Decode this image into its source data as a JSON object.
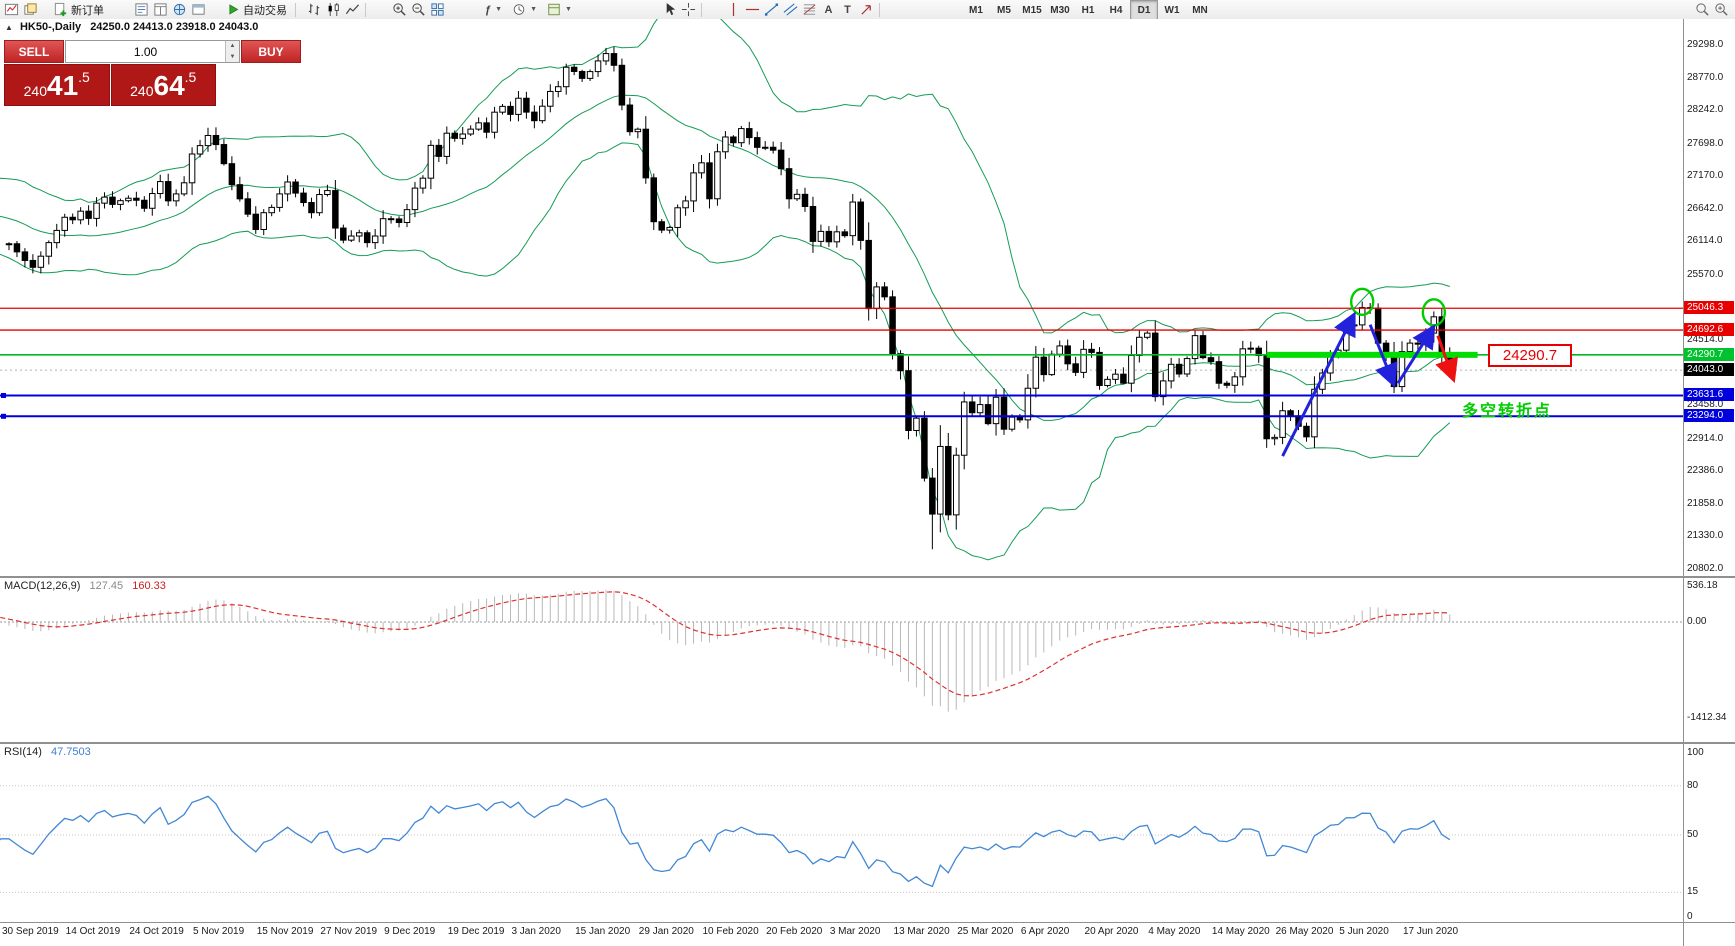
{
  "toolbar": {
    "new_order_label": "新订单",
    "autotrading_label": "自动交易",
    "timeframes": [
      "M1",
      "M5",
      "M15",
      "M30",
      "H1",
      "H4",
      "D1",
      "W1",
      "MN"
    ],
    "active_timeframe": "D1"
  },
  "chart_header": {
    "collapse_arrow": "▲",
    "symbol_title": "HK50-,Daily",
    "ohlc": "24250.0 24413.0 23918.0 24043.0"
  },
  "trade_panel": {
    "sell_label": "SELL",
    "buy_label": "BUY",
    "volume": "1.00",
    "sell_price": {
      "pre": "240",
      "big": "41",
      "frac": ".5"
    },
    "buy_price": {
      "pre": "240",
      "big": "64",
      "frac": ".5"
    }
  },
  "annotations": {
    "price_tag": "24290.7",
    "pivot_label": "多空转折点"
  },
  "indicators": {
    "macd": {
      "name": "MACD(12,26,9)",
      "main_value": "127.45",
      "signal_value": "160.33",
      "scale": [
        "536.18",
        "0.00",
        "-1412.34"
      ]
    },
    "rsi": {
      "name": "RSI(14)",
      "value": "47.7503",
      "scale": [
        "100",
        "80",
        "50",
        "15",
        "0"
      ]
    }
  },
  "price_axis": {
    "regular_labels": [
      "29298.0",
      "28770.0",
      "28242.0",
      "27698.0",
      "27170.0",
      "26642.0",
      "26114.0",
      "25570.0",
      "24514.0",
      "23458.0",
      "22914.0",
      "22386.0",
      "21858.0",
      "21330.0",
      "20802.0"
    ],
    "level_badges": [
      {
        "text": "25046.3",
        "value": 25046.3,
        "color": "#e80000"
      },
      {
        "text": "24692.6",
        "value": 24692.6,
        "color": "#e80000"
      },
      {
        "text": "24290.7",
        "value": 24290.7,
        "color": "#00c22e"
      },
      {
        "text": "24043.0",
        "value": 24043.0,
        "color": "#000000"
      },
      {
        "text": "23631.6",
        "value": 23631.6,
        "color": "#0000dd"
      },
      {
        "text": "23294.0",
        "value": 23294.0,
        "color": "#0000dd"
      }
    ]
  },
  "chart_data": {
    "type": "candlestick",
    "symbol": "HK50",
    "timeframe": "Daily",
    "last_bar": {
      "open": 24250.0,
      "high": 24413.0,
      "low": 23918.0,
      "close": 24043.0
    },
    "current_price": 24043.0,
    "levels": [
      {
        "value": 25046.3,
        "color": "#e80000",
        "width": 1.3
      },
      {
        "value": 24692.6,
        "color": "#e80000",
        "width": 1.3
      },
      {
        "value": 24290.7,
        "color": "#00bb22",
        "width": 1.6,
        "highlight_segment": {
          "from_bar": 158,
          "to_bar": 184.5
        }
      },
      {
        "value": 23631.6,
        "color": "#0000dd",
        "width": 2,
        "handle": true
      },
      {
        "value": 23294.0,
        "color": "#0000dd",
        "width": 2,
        "handle": true
      }
    ],
    "overlays": {
      "bollinger_period": 20,
      "bollinger_deviation": 2
    },
    "circles": [
      {
        "bar": 170,
        "price": 25150
      },
      {
        "bar": 179,
        "price": 24980
      }
    ],
    "arrows": {
      "blue": [
        {
          "from": [
            160,
            22650
          ],
          "to": [
            169,
            24950
          ]
        },
        {
          "from": [
            171,
            24780
          ],
          "to": [
            174,
            23800
          ]
        },
        {
          "from": [
            174.5,
            23830
          ],
          "to": [
            179,
            24750
          ]
        }
      ],
      "red": [
        {
          "from": [
            179.5,
            24600
          ],
          "to": [
            181.5,
            23880
          ]
        }
      ]
    },
    "date_ticks": [
      {
        "label": "30 Sep 2019",
        "bar": 0
      },
      {
        "label": "14 Oct 2019",
        "bar": 8
      },
      {
        "label": "24 Oct 2019",
        "bar": 16
      },
      {
        "label": "5 Nov 2019",
        "bar": 24
      },
      {
        "label": "15 Nov 2019",
        "bar": 32
      },
      {
        "label": "27 Nov 2019",
        "bar": 40
      },
      {
        "label": "9 Dec 2019",
        "bar": 48
      },
      {
        "label": "19 Dec 2019",
        "bar": 56
      },
      {
        "label": "3 Jan 2020",
        "bar": 64
      },
      {
        "label": "15 Jan 2020",
        "bar": 72
      },
      {
        "label": "29 Jan 2020",
        "bar": 80
      },
      {
        "label": "10 Feb 2020",
        "bar": 88
      },
      {
        "label": "20 Feb 2020",
        "bar": 96
      },
      {
        "label": "3 Mar 2020",
        "bar": 104
      },
      {
        "label": "13 Mar 2020",
        "bar": 112
      },
      {
        "label": "25 Mar 2020",
        "bar": 120
      },
      {
        "label": "6 Apr 2020",
        "bar": 128
      },
      {
        "label": "20 Apr 2020",
        "bar": 136
      },
      {
        "label": "4 May 2020",
        "bar": 144
      },
      {
        "label": "14 May 2020",
        "bar": 152
      },
      {
        "label": "26 May 2020",
        "bar": 160
      },
      {
        "label": "5 Jun 2020",
        "bar": 168
      },
      {
        "label": "17 Jun 2020",
        "bar": 176
      }
    ],
    "prehistory": [
      25281,
      25443,
      25724,
      25734,
      25939,
      26131,
      26291,
      26413,
      26681,
      26790,
      26854,
      27000,
      26790,
      26667,
      26503,
      26722,
      26790,
      26908,
      27100,
      26790,
      26754,
      26680,
      26790,
      26522,
      26435,
      26790,
      26668,
      26480,
      26435,
      26308,
      26222,
      26179,
      26041,
      25954,
      26092
    ],
    "closes": [
      26092,
      25960,
      25821,
      25710,
      25890,
      26110,
      26308,
      26521,
      26480,
      26620,
      26503,
      26750,
      26848,
      26730,
      26790,
      26830,
      26797,
      26667,
      26906,
      27100,
      26787,
      26900,
      27080,
      27547,
      27683,
      27847,
      27700,
      27390,
      27050,
      26820,
      26571,
      26323,
      26595,
      26681,
      26900,
      27093,
      26913,
      26760,
      26595,
      26890,
      26954,
      26346,
      26150,
      26217,
      26270,
      26110,
      26217,
      26498,
      26494,
      26436,
      26645,
      26994,
      27155,
      27687,
      27508,
      27884,
      27800,
      27871,
      27950,
      28052,
      27900,
      28225,
      28319,
      28189,
      28451,
      28226,
      28087,
      28322,
      28561,
      28638,
      28954,
      28885,
      28773,
      28883,
      29056,
      29175,
      28985,
      28341,
      27909,
      27949,
      27160,
      26449,
      26313,
      26356,
      26675,
      26786,
      27241,
      27404,
      26821,
      27583,
      27823,
      27730,
      27959,
      27813,
      27655,
      27656,
      27609,
      27309,
      26821,
      26893,
      26696,
      26130,
      26292,
      26123,
      26285,
      26223,
      26768,
      26146,
      25040,
      25392,
      25231,
      24309,
      24033,
      23064,
      23264,
      22292,
      21709,
      22805,
      21696,
      22663,
      23527,
      23352,
      23484,
      23175,
      23603,
      23085,
      23280,
      23236,
      23749,
      24253,
      23970,
      24300,
      24435,
      24145,
      24006,
      24380,
      24330,
      23793,
      23893,
      23977,
      23831,
      24280,
      24575,
      24643,
      23613,
      23868,
      24137,
      23980,
      24230,
      24602,
      24245,
      24180,
      23830,
      23797,
      23934,
      24388,
      24399,
      24280,
      22930,
      22952,
      23384,
      23301,
      23132,
      22961,
      23732,
      23996,
      24326,
      24366,
      24770,
      24776,
      25057,
      25049,
      24480,
      24301,
      23776,
      24344,
      24481,
      24464,
      24643,
      24907,
      24301,
      24043
    ],
    "low_overrides": {
      "116": 21139
    }
  }
}
